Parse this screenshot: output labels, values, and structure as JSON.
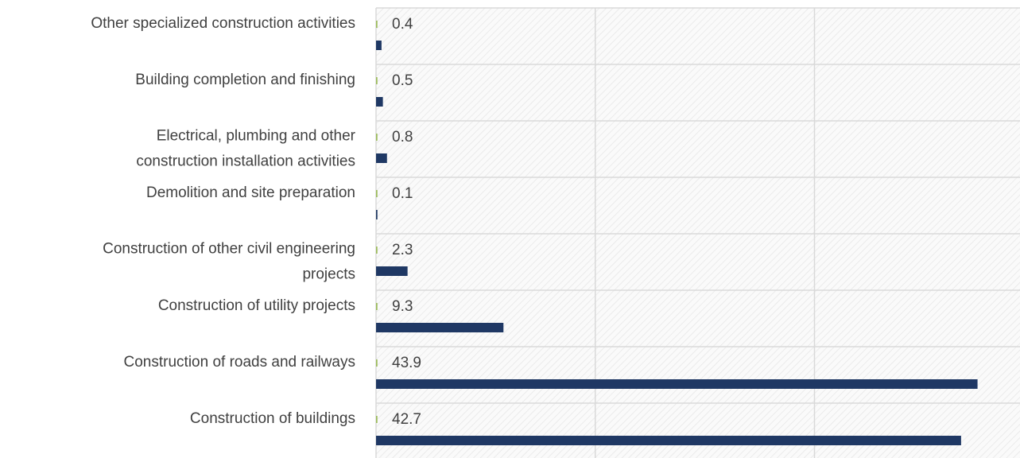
{
  "chart_data": {
    "type": "bar",
    "orientation": "horizontal",
    "categories": [
      "Other specialized construction activities",
      "Building completion and finishing",
      "Electrical, plumbing and other\nconstruction installation activities",
      "Demolition and site preparation",
      "Construction of other civil engineering\nprojects",
      "Construction of utility projects",
      "Construction of roads and railways",
      "Construction of buildings"
    ],
    "series": [
      {
        "color": "#9bbb59",
        "values": [
          0.1,
          0.1,
          0.1,
          0.1,
          0.1,
          0.1,
          0.1,
          0.1
        ]
      },
      {
        "color": "#1f3864",
        "values": [
          0.4,
          0.5,
          0.8,
          0.1,
          2.3,
          9.3,
          43.9,
          42.7
        ],
        "labeled": true
      }
    ],
    "xlim": [
      0,
      47
    ],
    "xticks": [
      0,
      16,
      32
    ],
    "grid": true
  }
}
